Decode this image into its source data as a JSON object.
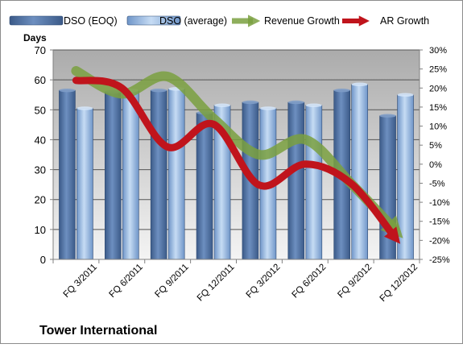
{
  "chart_data": {
    "type": "bar",
    "title": "Tower International",
    "ylabel_left": "Days",
    "ylim_left": [
      0,
      70
    ],
    "yticks_left": [
      0,
      10,
      20,
      30,
      40,
      50,
      60,
      70
    ],
    "ylim_right": [
      -25,
      30
    ],
    "yticks_right": [
      "-25%",
      "-20%",
      "-15%",
      "-10%",
      "-5%",
      "0%",
      "5%",
      "10%",
      "15%",
      "20%",
      "25%",
      "30%"
    ],
    "yticks_right_values": [
      -25,
      -20,
      -15,
      -10,
      -5,
      0,
      5,
      10,
      15,
      20,
      25,
      30
    ],
    "categories": [
      "FQ 3/2011",
      "FQ 6/2011",
      "FQ 9/2011",
      "FQ 12/2011",
      "FQ 3/2012",
      "FQ 6/2012",
      "FQ 9/2012",
      "FQ 12/2012"
    ],
    "grid": true,
    "legend_position": "top",
    "series": [
      {
        "name": "DSO (EOQ)",
        "type": "bar",
        "axis": "left",
        "color": "#4f6f9f",
        "values": [
          56.5,
          56,
          56.5,
          49,
          52.5,
          52.5,
          56.5,
          48
        ]
      },
      {
        "name": "DSO (average)",
        "type": "bar",
        "axis": "left",
        "color": "#9bbbe0",
        "values": [
          50.5,
          56.5,
          57,
          51.5,
          50.5,
          51.5,
          58.5,
          55
        ]
      },
      {
        "name": "Revenue Growth",
        "type": "line",
        "axis": "right",
        "color": "#7aa040",
        "values": [
          24.5,
          18.5,
          23,
          12,
          2.5,
          6.5,
          -5,
          -17
        ]
      },
      {
        "name": "AR Growth",
        "type": "line",
        "axis": "right",
        "color": "#c0141c",
        "values": [
          22,
          20,
          4.5,
          10.5,
          -5.5,
          0,
          -5,
          -19
        ]
      }
    ]
  }
}
